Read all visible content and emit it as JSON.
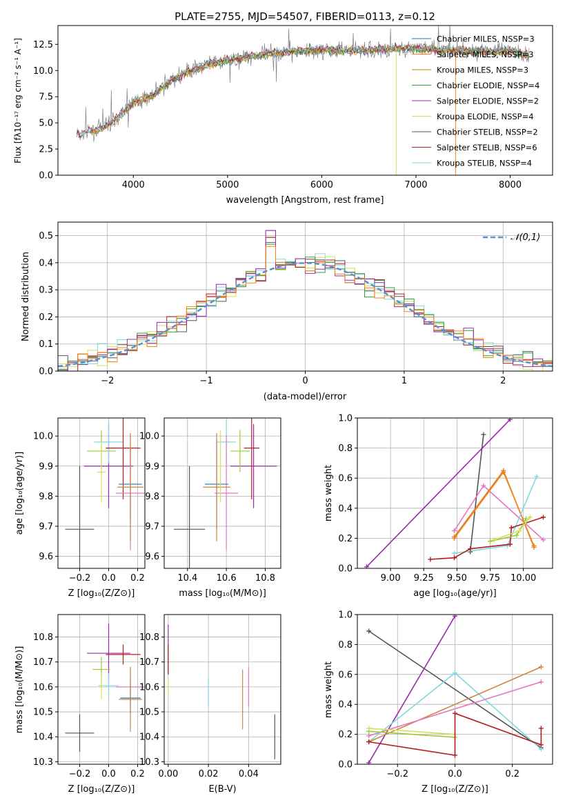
{
  "figure": {
    "title": "PLATE=2755, MJD=54507, FIBERID=0113, z=0.12"
  },
  "colors": {
    "Chabrier MILES": "#1f77b4",
    "Salpeter MILES": "#ff7f0e",
    "Kroupa MILES": "#b8860b",
    "Chabrier ELODIE": "#2ca02c",
    "Salpeter ELODIE": "#9c27b0",
    "Kroupa ELODIE": "#d4e157",
    "Chabrier STELIB": "#555555",
    "Salpeter STELIB": "#b71c1c",
    "Kroupa STELIB": "#80d8e0",
    "extra_pink": "#e377c2",
    "extra_green": "#9acd32",
    "extra_brown": "#cd853f",
    "gaussian": "#5b8fd6",
    "grid": "#b0b0b0"
  },
  "chart_data": [
    {
      "id": "spectrum",
      "type": "line",
      "title": "PLATE=2755, MJD=54507, FIBERID=0113, z=0.12",
      "xlabel": "wavelength [Angstrom, rest frame]",
      "ylabel": "Flux [fλ10⁻¹⁷ erg cm⁻² s⁻¹ A⁻¹]",
      "xlim": [
        3200,
        8450
      ],
      "ylim": [
        0,
        14.3
      ],
      "xticks": [
        4000,
        5000,
        6000,
        7000,
        8000
      ],
      "yticks": [
        0.0,
        2.5,
        5.0,
        7.5,
        10.0,
        12.5
      ],
      "grid": false,
      "legend_position": "top-right",
      "legend": [
        "Chabrier MILES, NSSP=3",
        "Salpeter MILES, NSSP=3",
        "Kroupa MILES, NSSP=3",
        "Chabrier ELODIE, NSSP=4",
        "Salpeter ELODIE, NSSP=2",
        "Kroupa ELODIE, NSSP=4",
        "Chabrier STELIB, NSSP=2",
        "Salpeter STELIB, NSSP=6",
        "Kroupa STELIB, NSSP=4"
      ],
      "spectrum_trend": {
        "x": [
          3400,
          3600,
          3800,
          4000,
          4200,
          4400,
          4600,
          4800,
          5000,
          5200,
          5500,
          5800,
          6000,
          6300,
          6600,
          6900,
          7200,
          7500,
          7800,
          8000,
          8200
        ],
        "y": [
          3.8,
          4.3,
          5.2,
          7.0,
          7.6,
          9.0,
          10.0,
          10.6,
          11.0,
          11.3,
          11.7,
          11.9,
          12.0,
          11.9,
          12.0,
          12.1,
          12.0,
          11.9,
          11.8,
          11.9,
          11.4
        ]
      },
      "drop_lines": [
        {
          "x": 6790,
          "color": "#d4e157"
        },
        {
          "x": 7420,
          "color": "#ff7f0e"
        }
      ]
    },
    {
      "id": "residuals",
      "type": "line",
      "xlabel": "(data-model)/error",
      "ylabel": "Normed distribution",
      "xlim": [
        -2.5,
        2.5
      ],
      "ylim": [
        0,
        0.55
      ],
      "xticks": [
        -2,
        -1,
        0,
        1,
        2
      ],
      "yticks": [
        0.0,
        0.1,
        0.2,
        0.3,
        0.4,
        0.5
      ],
      "grid": true,
      "legend_position": "top-right",
      "legend": [
        "𝒩(0,1)"
      ],
      "histogram_bin_width": 0.1
    },
    {
      "id": "age_vs_Z",
      "type": "scatter",
      "xlabel": "Z [log₁₀(Z/Z⊙)]",
      "ylabel": "age [log₁₀(age/yr)]",
      "xlim": [
        -0.35,
        0.25
      ],
      "ylim": [
        9.56,
        10.06
      ],
      "xticks": [
        -0.2,
        0.0,
        0.2
      ],
      "yticks": [
        9.6,
        9.7,
        9.8,
        9.9,
        10.0
      ],
      "grid": true,
      "series": [
        {
          "color": "#555555",
          "x": -0.2,
          "xerr": 0.1,
          "y": 9.69,
          "yerr": 0.21
        },
        {
          "color": "#9c27b0",
          "x": 0.0,
          "xerr": 0.17,
          "y": 9.9,
          "yerr": 0.14
        },
        {
          "color": "#9acd32",
          "x": -0.05,
          "xerr": 0.1,
          "y": 9.95,
          "yerr": 0.07
        },
        {
          "color": "#80d8e0",
          "x": 0.0,
          "xerr": 0.1,
          "y": 9.98,
          "yerr": 0.07
        },
        {
          "color": "#b71c1c",
          "x": 0.1,
          "xerr": 0.12,
          "y": 9.96,
          "yerr": 0.17
        },
        {
          "color": "#e377c2",
          "x": 0.15,
          "xerr": 0.1,
          "y": 9.81,
          "yerr": 0.19
        },
        {
          "color": "#1f77b4",
          "x": 0.15,
          "xerr": 0.08,
          "y": 9.84,
          "yerr": 0.12
        },
        {
          "color": "#cd853f",
          "x": 0.15,
          "xerr": 0.09,
          "y": 9.83,
          "yerr": 0.18
        },
        {
          "color": "#d4e157",
          "x": -0.05,
          "xerr": 0.03,
          "y": 9.88,
          "yerr": 0.1
        }
      ]
    },
    {
      "id": "age_vs_mass",
      "type": "scatter",
      "xlabel": "mass [log₁₀(M/M⊙)]",
      "ylabel": "",
      "xlim": [
        10.28,
        10.88
      ],
      "ylim": [
        9.56,
        10.06
      ],
      "xticks": [
        10.4,
        10.6,
        10.8
      ],
      "yticks": [
        9.6,
        9.7,
        9.8,
        9.9,
        10.0
      ],
      "grid": true,
      "series": [
        {
          "color": "#555555",
          "x": 10.41,
          "xerr": 0.08,
          "y": 9.69,
          "yerr": 0.21
        },
        {
          "color": "#9c27b0",
          "x": 10.74,
          "xerr": 0.12,
          "y": 9.9,
          "yerr": 0.14
        },
        {
          "color": "#9acd32",
          "x": 10.67,
          "xerr": 0.05,
          "y": 9.95,
          "yerr": 0.07
        },
        {
          "color": "#80d8e0",
          "x": 10.6,
          "xerr": 0.05,
          "y": 9.98,
          "yerr": 0.07
        },
        {
          "color": "#b71c1c",
          "x": 10.73,
          "xerr": 0.04,
          "y": 9.96,
          "yerr": 0.17
        },
        {
          "color": "#e377c2",
          "x": 10.6,
          "xerr": 0.06,
          "y": 9.81,
          "yerr": 0.19
        },
        {
          "color": "#1f77b4",
          "x": 10.55,
          "xerr": 0.06,
          "y": 9.84,
          "yerr": 0.15
        },
        {
          "color": "#cd853f",
          "x": 10.55,
          "xerr": 0.07,
          "y": 9.83,
          "yerr": 0.18
        },
        {
          "color": "#d4e157",
          "x": 10.57,
          "xerr": 0.01,
          "y": 9.9,
          "yerr": 0.12
        }
      ]
    },
    {
      "id": "weight_vs_age",
      "type": "line",
      "xlabel": "age [log₁₀(age/yr)]",
      "ylabel": "mass weight",
      "xlim": [
        8.75,
        10.22
      ],
      "ylim": [
        0,
        1.0
      ],
      "xticks": [
        9.0,
        9.25,
        9.5,
        9.75,
        10.0
      ],
      "yticks": [
        0.0,
        0.2,
        0.4,
        0.6,
        0.8,
        1.0
      ],
      "grid": true,
      "series": [
        {
          "color": "#9c27b0",
          "x": [
            8.82,
            9.9
          ],
          "y": [
            0.01,
            0.99
          ]
        },
        {
          "color": "#555555",
          "x": [
            9.6,
            9.7
          ],
          "y": [
            0.11,
            0.89
          ]
        },
        {
          "color": "#e377c2",
          "x": [
            9.48,
            9.7,
            10.15
          ],
          "y": [
            0.25,
            0.55,
            0.19
          ]
        },
        {
          "color": "#cd853f",
          "x": [
            9.48,
            9.85,
            10.08
          ],
          "y": [
            0.21,
            0.65,
            0.14
          ]
        },
        {
          "color": "#ff7f0e",
          "x": [
            9.48,
            9.85,
            10.08
          ],
          "y": [
            0.2,
            0.64,
            0.15
          ]
        },
        {
          "color": "#80d8e0",
          "x": [
            9.48,
            9.88,
            10.1
          ],
          "y": [
            0.1,
            0.15,
            0.61
          ]
        },
        {
          "color": "#b71c1c",
          "x": [
            9.3,
            9.48,
            9.6,
            9.9,
            9.91,
            10.15
          ],
          "y": [
            0.06,
            0.07,
            0.13,
            0.16,
            0.27,
            0.34
          ]
        },
        {
          "color": "#9acd32",
          "x": [
            9.75,
            9.95,
            10.02
          ],
          "y": [
            0.18,
            0.22,
            0.33
          ]
        },
        {
          "color": "#d4e157",
          "x": [
            9.78,
            9.97,
            10.05
          ],
          "y": [
            0.19,
            0.25,
            0.34
          ]
        }
      ]
    },
    {
      "id": "mass_vs_Z",
      "type": "scatter",
      "xlabel": "Z [log₁₀(Z/Z⊙)]",
      "ylabel": "mass [log₁₀(M/M⊙)]",
      "xlim": [
        -0.35,
        0.25
      ],
      "ylim": [
        10.29,
        10.89
      ],
      "xticks": [
        -0.2,
        0.0,
        0.2
      ],
      "yticks": [
        10.3,
        10.4,
        10.5,
        10.6,
        10.7,
        10.8
      ],
      "grid": true,
      "series": [
        {
          "color": "#555555",
          "x": -0.2,
          "xerr": 0.1,
          "y": 10.415,
          "yerr": 0.075
        },
        {
          "color": "#9c27b0",
          "x": 0.0,
          "xerr": 0.15,
          "y": 10.735,
          "yerr": 0.12
        },
        {
          "color": "#9acd32",
          "x": -0.05,
          "xerr": 0.06,
          "y": 10.67,
          "yerr": 0.05
        },
        {
          "color": "#80d8e0",
          "x": 0.0,
          "xerr": 0.07,
          "y": 10.605,
          "yerr": 0.05
        },
        {
          "color": "#b71c1c",
          "x": 0.1,
          "xerr": 0.12,
          "y": 10.73,
          "yerr": 0.04
        },
        {
          "color": "#e377c2",
          "x": 0.15,
          "xerr": 0.1,
          "y": 10.6,
          "yerr": 0.07
        },
        {
          "color": "#1f77b4",
          "x": 0.15,
          "xerr": 0.07,
          "y": 10.555,
          "yerr": 0.06
        },
        {
          "color": "#cd853f",
          "x": 0.15,
          "xerr": 0.08,
          "y": 10.55,
          "yerr": 0.13
        },
        {
          "color": "#d4e157",
          "x": -0.05,
          "xerr": 0.02,
          "y": 10.6,
          "yerr": 0.05
        }
      ]
    },
    {
      "id": "mass_vs_ebv",
      "type": "scatter",
      "xlabel": "E(B-V)",
      "ylabel": "",
      "xlim": [
        -0.002,
        0.056
      ],
      "ylim": [
        10.29,
        10.89
      ],
      "xticks": [
        0.0,
        0.02,
        0.04
      ],
      "yticks": [
        10.3,
        10.4,
        10.5,
        10.6,
        10.7,
        10.8
      ],
      "grid": true,
      "series": [
        {
          "color": "#555555",
          "x": 0.053,
          "y": 10.4,
          "yerr": 0.09
        },
        {
          "color": "#9c27b0",
          "x": 0.0,
          "y": 10.75,
          "yerr": 0.1
        },
        {
          "color": "#b71c1c",
          "x": 0.0,
          "y": 10.71,
          "yerr": 0.06
        },
        {
          "color": "#d4e157",
          "x": 0.0,
          "y": 10.6,
          "yerr": 0.03
        },
        {
          "color": "#80d8e0",
          "x": 0.02,
          "y": 10.58,
          "yerr": 0.06
        },
        {
          "color": "#cd853f",
          "x": 0.037,
          "y": 10.55,
          "yerr": 0.12
        },
        {
          "color": "#e377c2",
          "x": 0.04,
          "y": 10.6,
          "yerr": 0.08
        }
      ]
    },
    {
      "id": "weight_vs_Z",
      "type": "line",
      "xlabel": "Z [log₁₀(Z/Z⊙)]",
      "ylabel": "mass weight",
      "xlim": [
        -0.34,
        0.34
      ],
      "ylim": [
        0,
        1.0
      ],
      "xticks": [
        -0.2,
        0.0,
        0.2
      ],
      "yticks": [
        0.0,
        0.2,
        0.4,
        0.6,
        0.8,
        1.0
      ],
      "grid": true,
      "series": [
        {
          "color": "#555555",
          "x": [
            -0.3,
            0.3
          ],
          "y": [
            0.89,
            0.11
          ]
        },
        {
          "color": "#9c27b0",
          "x": [
            -0.3,
            0.0
          ],
          "y": [
            0.01,
            0.99
          ]
        },
        {
          "color": "#80d8e0",
          "x": [
            -0.3,
            0.0,
            0.3
          ],
          "y": [
            0.15,
            0.61,
            0.1
          ]
        },
        {
          "color": "#cd853f",
          "x": [
            -0.3,
            0.3
          ],
          "y": [
            0.15,
            0.65
          ]
        },
        {
          "color": "#e377c2",
          "x": [
            -0.3,
            0.3
          ],
          "y": [
            0.19,
            0.55
          ]
        },
        {
          "color": "#9acd32",
          "x": [
            -0.3,
            0.0
          ],
          "y": [
            0.22,
            0.18
          ]
        },
        {
          "color": "#d4e157",
          "x": [
            -0.3,
            0.0
          ],
          "y": [
            0.24,
            0.2
          ]
        },
        {
          "color": "#b71c1c",
          "x": [
            -0.3,
            0.0,
            0.0,
            0.3,
            0.3
          ],
          "y": [
            0.15,
            0.06,
            0.34,
            0.13,
            0.24
          ]
        }
      ]
    }
  ]
}
